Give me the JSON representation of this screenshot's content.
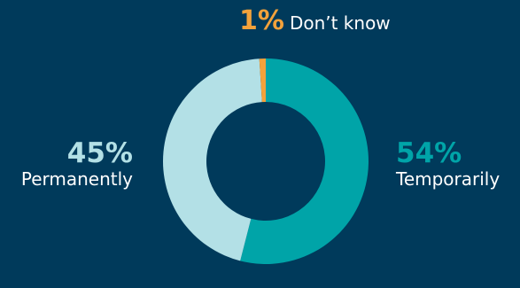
{
  "chart_data": {
    "type": "pie",
    "categories": [
      "Temporarily",
      "Permanently",
      "Don’t know"
    ],
    "values": [
      54,
      45,
      1
    ],
    "value_labels": [
      "54%",
      "45%",
      "1%"
    ],
    "colors": [
      "#00a4a8",
      "#b3e0e6",
      "#f3a23b"
    ],
    "background": "#003a5b",
    "donut": true
  }
}
